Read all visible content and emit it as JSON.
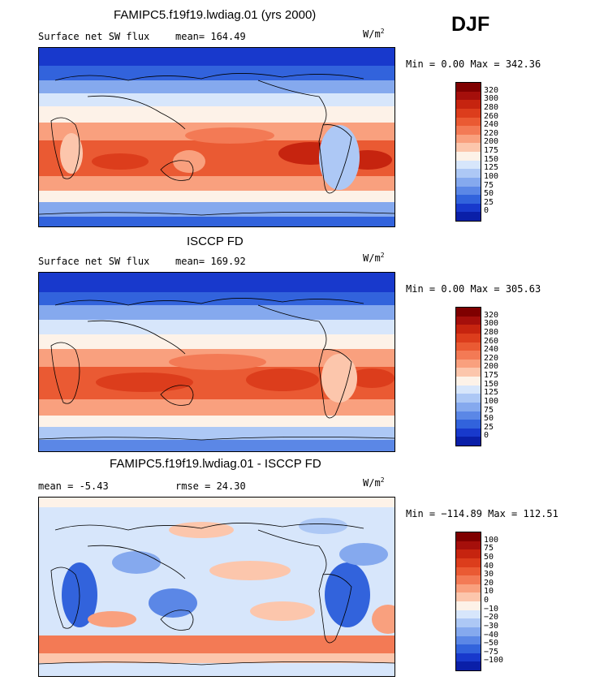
{
  "season": "DJF",
  "panels": [
    {
      "title": "FAMIPC5.f19f19.lwdiag.01 (yrs 2000)",
      "left_label": "Surface net SW flux",
      "mid_label": "mean=  164.49",
      "units_base": "W/m",
      "units_exp": "2",
      "minmax": "Min =   0.00 Max = 342.36",
      "colorbar": {
        "labels": [
          "320",
          "300",
          "280",
          "260",
          "240",
          "220",
          "200",
          "175",
          "150",
          "125",
          "100",
          "75",
          "50",
          "25",
          "0"
        ],
        "colors": [
          "#7f0000",
          "#a50f0b",
          "#c6240f",
          "#dc3d1c",
          "#ea5a33",
          "#f37a55",
          "#f9a07e",
          "#fcc6ac",
          "#fdf2e8",
          "#d7e6fb",
          "#adc8f5",
          "#85a9ee",
          "#5b87e6",
          "#3263dc",
          "#1839cc",
          "#0a1fa8"
        ]
      }
    },
    {
      "title": "ISCCP FD",
      "left_label": "Surface net SW flux",
      "mid_label": "mean=  169.92",
      "units_base": "W/m",
      "units_exp": "2",
      "minmax": "Min =   0.00 Max = 305.63",
      "colorbar": {
        "labels": [
          "320",
          "300",
          "280",
          "260",
          "240",
          "220",
          "200",
          "175",
          "150",
          "125",
          "100",
          "75",
          "50",
          "25",
          "0"
        ],
        "colors": [
          "#7f0000",
          "#a50f0b",
          "#c6240f",
          "#dc3d1c",
          "#ea5a33",
          "#f37a55",
          "#f9a07e",
          "#fcc6ac",
          "#fdf2e8",
          "#d7e6fb",
          "#adc8f5",
          "#85a9ee",
          "#5b87e6",
          "#3263dc",
          "#1839cc",
          "#0a1fa8"
        ]
      }
    },
    {
      "title": "FAMIPC5.f19f19.lwdiag.01 - ISCCP FD",
      "left_label": "mean =   -5.43",
      "mid_label": "rmse =   24.30",
      "units_base": "W/m",
      "units_exp": "2",
      "minmax": "Min = −114.89 Max = 112.51",
      "colorbar": {
        "labels": [
          "100",
          "75",
          "50",
          "40",
          "30",
          "20",
          "10",
          "0",
          "−10",
          "−20",
          "−30",
          "−40",
          "−50",
          "−75",
          "−100"
        ],
        "colors": [
          "#7f0000",
          "#a50f0b",
          "#c6240f",
          "#dc3d1c",
          "#ea5a33",
          "#f37a55",
          "#f9a07e",
          "#fcc6ac",
          "#fdf2e8",
          "#d7e6fb",
          "#adc8f5",
          "#85a9ee",
          "#5b87e6",
          "#3263dc",
          "#1839cc",
          "#0a1fa8"
        ]
      }
    }
  ]
}
